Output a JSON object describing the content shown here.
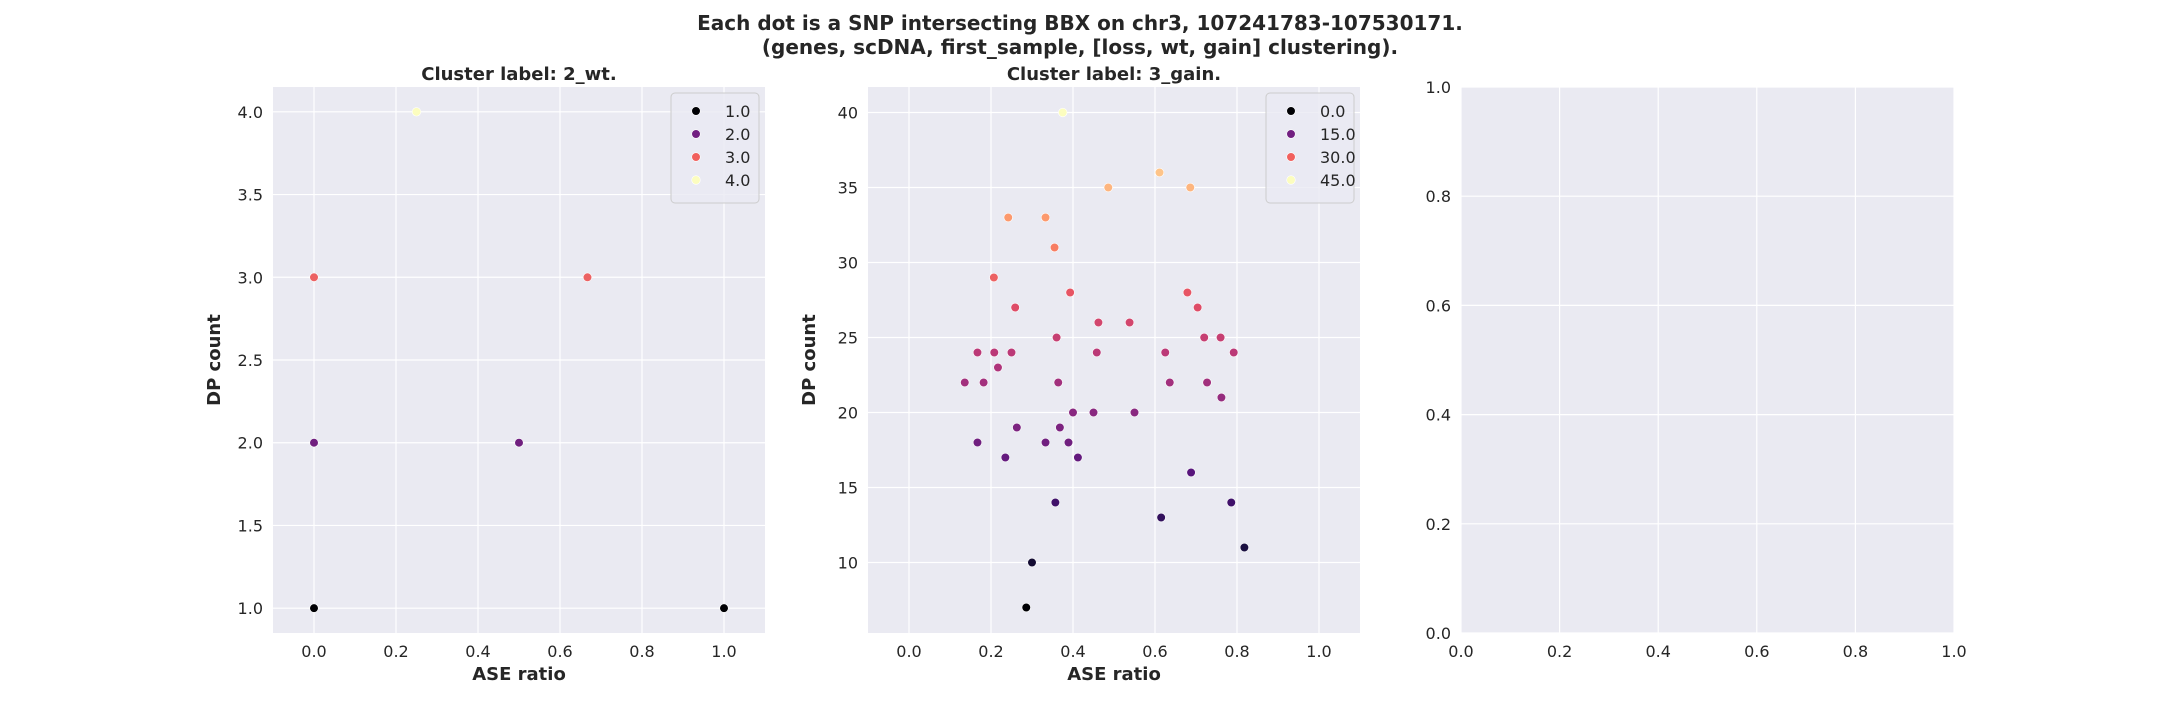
{
  "figure": {
    "title_line1": "Each dot is a SNP intersecting BBX on chr3, 107241783-107530171.",
    "title_line2": "(genes, scDNA, first_sample, [loss, wt, gain] clustering)."
  },
  "chart_data": [
    {
      "type": "scatter",
      "title": "Cluster label: 2_wt.",
      "xlabel": "ASE ratio",
      "ylabel": "DP count",
      "xlim": [
        -0.1,
        1.1
      ],
      "ylim": [
        0.85,
        4.15
      ],
      "xticks": [
        "0.0",
        "0.2",
        "0.4",
        "0.6",
        "0.8",
        "1.0"
      ],
      "yticks": [
        "1.0",
        "1.5",
        "2.0",
        "2.5",
        "3.0",
        "3.5",
        "4.0"
      ],
      "grid": true,
      "legend_position": "top-right",
      "legend": [
        {
          "label": "1.0",
          "color": "#000004"
        },
        {
          "label": "2.0",
          "color": "#721f81"
        },
        {
          "label": "3.0",
          "color": "#f1605d"
        },
        {
          "label": "4.0",
          "color": "#fcfdbf"
        }
      ],
      "hue_range": [
        1,
        4
      ],
      "points": [
        {
          "x": 0.0,
          "y": 1
        },
        {
          "x": 1.0,
          "y": 1
        },
        {
          "x": 0.0,
          "y": 2
        },
        {
          "x": 0.5,
          "y": 2
        },
        {
          "x": 0.0,
          "y": 3
        },
        {
          "x": 0.667,
          "y": 3
        },
        {
          "x": 0.25,
          "y": 4
        }
      ]
    },
    {
      "type": "scatter",
      "title": "Cluster label: 3_gain.",
      "xlabel": "ASE ratio",
      "ylabel": "DP count",
      "xlim": [
        -0.1,
        1.1
      ],
      "ylim": [
        5.3,
        41.7
      ],
      "xticks": [
        "0.0",
        "0.2",
        "0.4",
        "0.6",
        "0.8",
        "1.0"
      ],
      "yticks": [
        "10",
        "15",
        "20",
        "25",
        "30",
        "35",
        "40"
      ],
      "grid": true,
      "legend_position": "top-right",
      "legend": [
        {
          "label": "0.0",
          "color": "#000004"
        },
        {
          "label": "15.0",
          "color": "#721f81"
        },
        {
          "label": "30.0",
          "color": "#f1605d"
        },
        {
          "label": "45.0",
          "color": "#fcfdbf"
        }
      ],
      "hue_range": [
        7,
        40
      ],
      "points": [
        {
          "x": 0.286,
          "y": 7
        },
        {
          "x": 0.3,
          "y": 10
        },
        {
          "x": 0.818,
          "y": 11
        },
        {
          "x": 0.615,
          "y": 13
        },
        {
          "x": 0.357,
          "y": 14
        },
        {
          "x": 0.786,
          "y": 14
        },
        {
          "x": 0.688,
          "y": 16
        },
        {
          "x": 0.235,
          "y": 17
        },
        {
          "x": 0.412,
          "y": 17
        },
        {
          "x": 0.167,
          "y": 18
        },
        {
          "x": 0.333,
          "y": 18
        },
        {
          "x": 0.389,
          "y": 18
        },
        {
          "x": 0.263,
          "y": 19
        },
        {
          "x": 0.368,
          "y": 19
        },
        {
          "x": 0.4,
          "y": 20
        },
        {
          "x": 0.45,
          "y": 20
        },
        {
          "x": 0.55,
          "y": 20
        },
        {
          "x": 0.762,
          "y": 21
        },
        {
          "x": 0.136,
          "y": 22
        },
        {
          "x": 0.182,
          "y": 22
        },
        {
          "x": 0.364,
          "y": 22
        },
        {
          "x": 0.636,
          "y": 22
        },
        {
          "x": 0.727,
          "y": 22
        },
        {
          "x": 0.217,
          "y": 23
        },
        {
          "x": 0.167,
          "y": 24
        },
        {
          "x": 0.208,
          "y": 24
        },
        {
          "x": 0.25,
          "y": 24
        },
        {
          "x": 0.458,
          "y": 24
        },
        {
          "x": 0.625,
          "y": 24
        },
        {
          "x": 0.792,
          "y": 24
        },
        {
          "x": 0.36,
          "y": 25
        },
        {
          "x": 0.72,
          "y": 25
        },
        {
          "x": 0.76,
          "y": 25
        },
        {
          "x": 0.462,
          "y": 26
        },
        {
          "x": 0.538,
          "y": 26
        },
        {
          "x": 0.259,
          "y": 27
        },
        {
          "x": 0.704,
          "y": 27
        },
        {
          "x": 0.393,
          "y": 28
        },
        {
          "x": 0.679,
          "y": 28
        },
        {
          "x": 0.207,
          "y": 29
        },
        {
          "x": 0.355,
          "y": 31
        },
        {
          "x": 0.242,
          "y": 33
        },
        {
          "x": 0.333,
          "y": 33
        },
        {
          "x": 0.486,
          "y": 35
        },
        {
          "x": 0.686,
          "y": 35
        },
        {
          "x": 0.611,
          "y": 36
        },
        {
          "x": 0.375,
          "y": 40
        }
      ]
    },
    {
      "type": "scatter",
      "title": "",
      "xlabel": "",
      "ylabel": "",
      "xlim": [
        0,
        1
      ],
      "ylim": [
        0,
        1
      ],
      "xticks": [
        "0.0",
        "0.2",
        "0.4",
        "0.6",
        "0.8",
        "1.0"
      ],
      "yticks": [
        "0.0",
        "0.2",
        "0.4",
        "0.6",
        "0.8",
        "1.0"
      ],
      "grid": true,
      "legend": [],
      "points": []
    }
  ],
  "colors": {
    "axes_bg": "#eaeaf2",
    "grid": "#ffffff",
    "text": "#262626"
  }
}
